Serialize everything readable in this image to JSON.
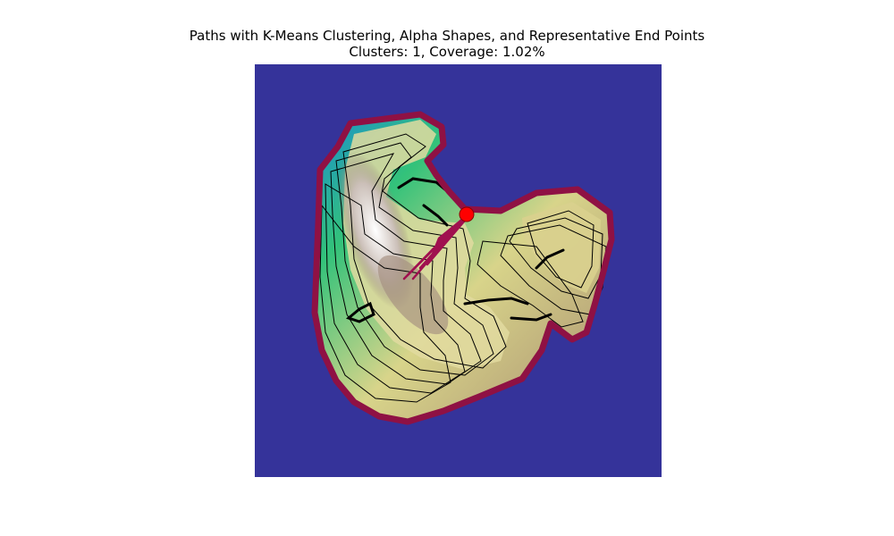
{
  "figure": {
    "title": "Paths with K-Means Clustering, Alpha Shapes, and Representative End Points",
    "subtitle": "Clusters: 1, Coverage: 1.02%"
  },
  "colors": {
    "ocean": "#35339a",
    "boundary": "#8f1144",
    "path": "#a0104f",
    "endpoint": "#ff0000",
    "contour": "#000000"
  },
  "map": {
    "clusters": 1,
    "coverage_percent": 1.02,
    "representative_end_points": 1,
    "colormap": "terrain"
  }
}
